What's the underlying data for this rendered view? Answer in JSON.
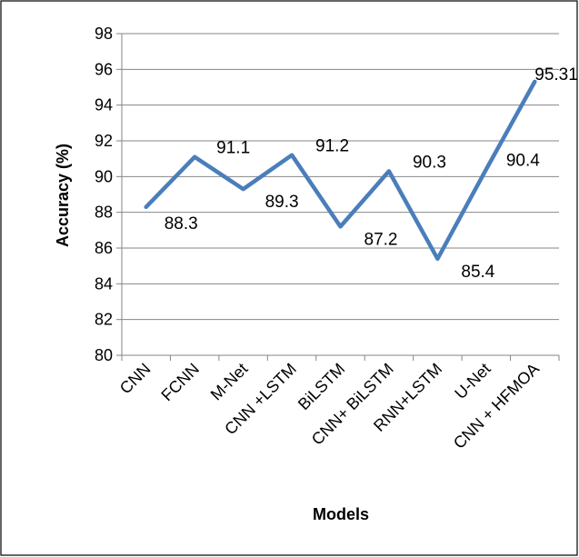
{
  "chart_data": {
    "type": "line",
    "title": "",
    "xlabel": "Models",
    "ylabel": "Accuracy (%)",
    "categories": [
      "CNN",
      "FCNN",
      "M-Net",
      "CNN +LSTM",
      "BiLSTM",
      "CNN+ BiLSTM",
      "RNN+LSTM",
      "U-Net",
      "CNN + HFMOA"
    ],
    "series": [
      {
        "values": [
          88.3,
          91.1,
          89.3,
          91.2,
          87.2,
          90.3,
          85.4,
          90.4,
          95.31
        ],
        "labels": [
          "88.3",
          "91.1",
          "89.3",
          "91.2",
          "87.2",
          "90.3",
          "85.4",
          "90.4",
          "95.31"
        ],
        "color": "#4a7ebb"
      }
    ],
    "ylim": [
      80,
      98
    ],
    "yticks": [
      "80",
      "82",
      "84",
      "86",
      "88",
      "90",
      "92",
      "94",
      "96",
      "98"
    ],
    "grid": true,
    "legend": "none"
  }
}
